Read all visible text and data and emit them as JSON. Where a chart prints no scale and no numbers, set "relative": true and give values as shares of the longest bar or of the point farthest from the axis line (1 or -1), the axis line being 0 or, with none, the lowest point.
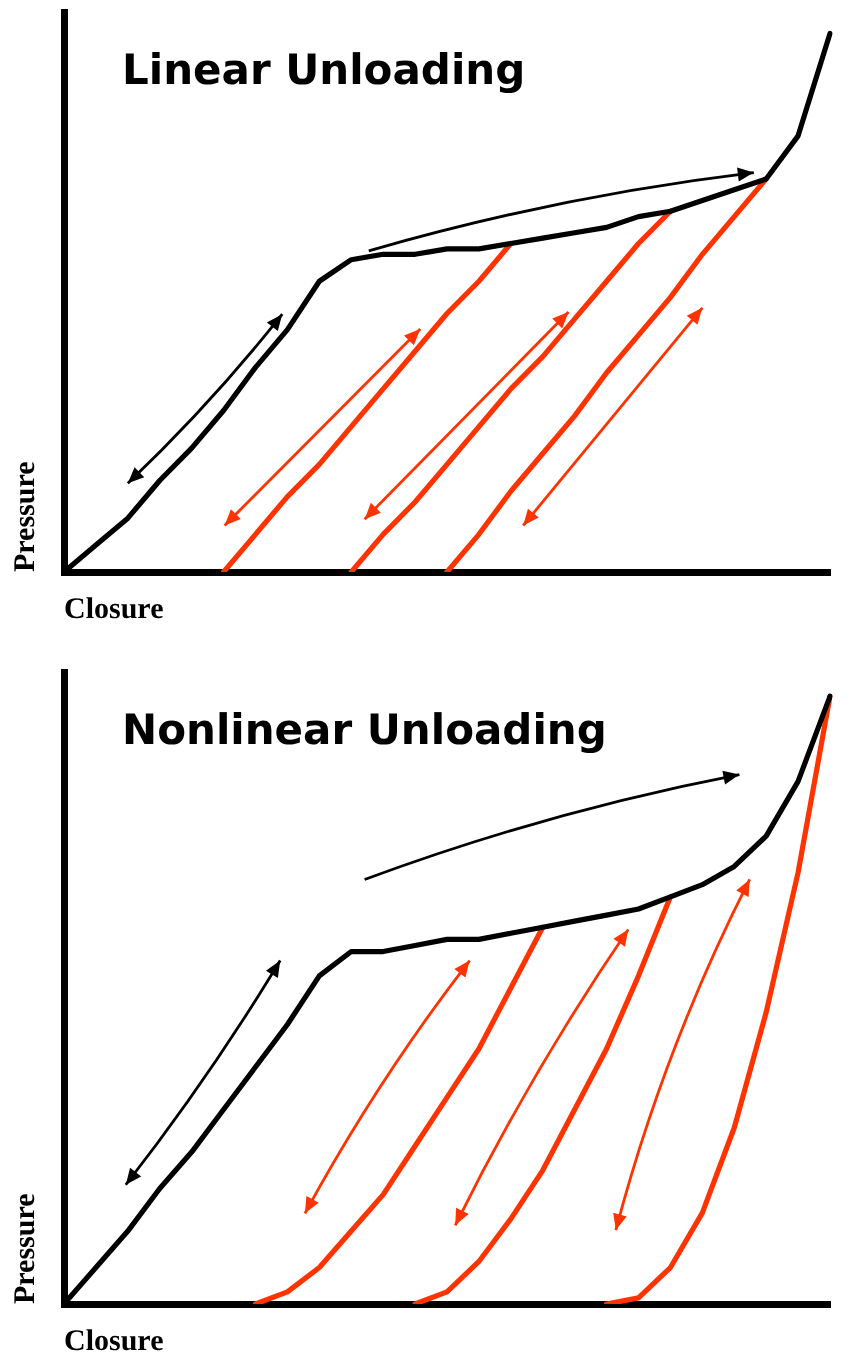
{
  "chart_data": [
    {
      "type": "line",
      "title": "Linear Unloading",
      "xlabel": "Closure",
      "ylabel": "Pressure",
      "relative": true,
      "legend": false,
      "grid": false,
      "marker": "none",
      "categories": [
        null,
        null,
        null,
        null,
        null,
        null,
        null,
        null,
        null,
        null,
        null,
        null,
        null,
        null,
        null,
        null,
        null,
        null,
        null,
        null,
        null,
        null,
        null,
        null,
        null
      ],
      "series": [
        {
          "color": "#000000",
          "values": [
            0,
            0.05,
            0.1,
            0.17,
            0.23,
            0.3,
            0.38,
            0.45,
            0.54,
            0.58,
            0.59,
            0.59,
            0.6,
            0.6,
            0.61,
            0.62,
            0.63,
            0.64,
            0.66,
            0.67,
            0.69,
            0.71,
            0.73,
            0.81,
            1
          ]
        },
        {
          "color": "#ff3300",
          "values": [
            null,
            null,
            null,
            null,
            null,
            0,
            0.07,
            0.14,
            0.2,
            0.27,
            0.34,
            0.41,
            0.48,
            0.54,
            0.61,
            null,
            null,
            null,
            null,
            null,
            null,
            null,
            null,
            null,
            null
          ]
        },
        {
          "color": "#ff3300",
          "values": [
            null,
            null,
            null,
            null,
            null,
            null,
            null,
            null,
            null,
            0,
            0.07,
            0.13,
            0.2,
            0.27,
            0.34,
            0.4,
            0.47,
            0.54,
            0.61,
            0.67,
            null,
            null,
            null,
            null,
            null
          ]
        },
        {
          "color": "#ff3300",
          "values": [
            null,
            null,
            null,
            null,
            null,
            null,
            null,
            null,
            null,
            null,
            null,
            null,
            0,
            0.07,
            0.15,
            0.22,
            0.29,
            0.37,
            0.44,
            0.51,
            0.59,
            0.66,
            0.73,
            null,
            null
          ]
        }
      ]
    },
    {
      "type": "line",
      "title": "Nonlinear Unloading",
      "xlabel": "Closure",
      "ylabel": "Pressure",
      "relative": true,
      "legend": false,
      "grid": false,
      "marker": "none",
      "categories": [
        null,
        null,
        null,
        null,
        null,
        null,
        null,
        null,
        null,
        null,
        null,
        null,
        null,
        null,
        null,
        null,
        null,
        null,
        null,
        null,
        null,
        null,
        null,
        null,
        null
      ],
      "series": [
        {
          "color": "#000000",
          "values": [
            0,
            0.06,
            0.12,
            0.19,
            0.25,
            0.32,
            0.39,
            0.46,
            0.54,
            0.58,
            0.58,
            0.59,
            0.6,
            0.6,
            0.61,
            0.62,
            0.63,
            0.64,
            0.65,
            0.67,
            0.69,
            0.72,
            0.77,
            0.86,
            1
          ]
        },
        {
          "color": "#ff3300",
          "values": [
            null,
            null,
            null,
            null,
            null,
            null,
            0,
            0.02,
            0.06,
            0.12,
            0.18,
            0.26,
            0.34,
            0.42,
            0.52,
            0.62,
            null,
            null,
            null,
            null,
            null,
            null,
            null,
            null,
            null
          ]
        },
        {
          "color": "#ff3300",
          "values": [
            null,
            null,
            null,
            null,
            null,
            null,
            null,
            null,
            null,
            null,
            null,
            0,
            0.02,
            0.07,
            0.14,
            0.22,
            0.32,
            0.42,
            0.54,
            0.67,
            null,
            null,
            null,
            null,
            null
          ]
        },
        {
          "color": "#ff3300",
          "values": [
            null,
            null,
            null,
            null,
            null,
            null,
            null,
            null,
            null,
            null,
            null,
            null,
            null,
            null,
            null,
            null,
            null,
            0,
            0.01,
            0.06,
            0.15,
            0.29,
            0.48,
            0.71,
            1
          ]
        }
      ]
    }
  ]
}
